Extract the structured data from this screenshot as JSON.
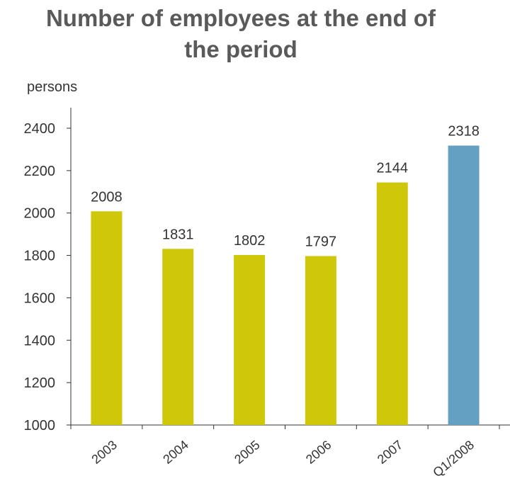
{
  "chart_data": {
    "type": "bar",
    "title": "Number of employees at the end of the period",
    "ylabel": "persons",
    "xlabel": "",
    "categories": [
      "2003",
      "2004",
      "2005",
      "2006",
      "2007",
      "Q1/2008"
    ],
    "values": [
      2008,
      1831,
      1802,
      1797,
      2144,
      2318
    ],
    "data_labels": [
      "2008",
      "1831",
      "1802",
      "1797",
      "2144",
      "2318"
    ],
    "bar_colors": [
      "#cfc70a",
      "#cfc70a",
      "#cfc70a",
      "#cfc70a",
      "#cfc70a",
      "#63a0c1"
    ],
    "ylim": [
      1000,
      2400
    ],
    "yticks": [
      1000,
      1200,
      1400,
      1600,
      1800,
      2000,
      2200,
      2400
    ],
    "grid": false,
    "legend": "none"
  }
}
